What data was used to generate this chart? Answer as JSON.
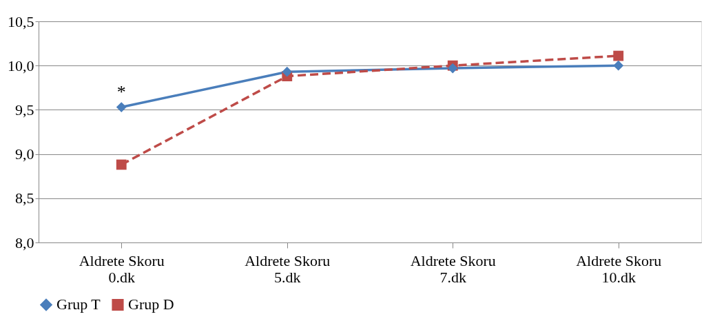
{
  "chart_data": {
    "type": "line",
    "categories": [
      "Aldrete Skoru 0.dk",
      "Aldrete Skoru 5.dk",
      "Aldrete Skoru 7.dk",
      "Aldrete Skoru 10.dk"
    ],
    "series": [
      {
        "name": "Grup T",
        "color": "#4a7ebb",
        "values": [
          9.53,
          9.93,
          9.97,
          10.0
        ],
        "marker": "diamond",
        "line_style": "solid"
      },
      {
        "name": "Grup D",
        "color": "#be4b48",
        "values": [
          8.88,
          9.88,
          10.0,
          10.11
        ],
        "marker": "square",
        "line_style": "dashed"
      }
    ],
    "ylim": [
      8.0,
      10.5
    ],
    "yticks": [
      {
        "value": 8.0,
        "label": "8,0"
      },
      {
        "value": 8.5,
        "label": "8,5"
      },
      {
        "value": 9.0,
        "label": "9,0"
      },
      {
        "value": 9.5,
        "label": "9,5"
      },
      {
        "value": 10.0,
        "label": "10,0"
      },
      {
        "value": 10.5,
        "label": "10,5"
      }
    ],
    "grid": "y",
    "legend": "bottom",
    "annotations": [
      {
        "text": "*",
        "x": "Aldrete Skoru 0.dk",
        "y": 9.53
      }
    ]
  }
}
